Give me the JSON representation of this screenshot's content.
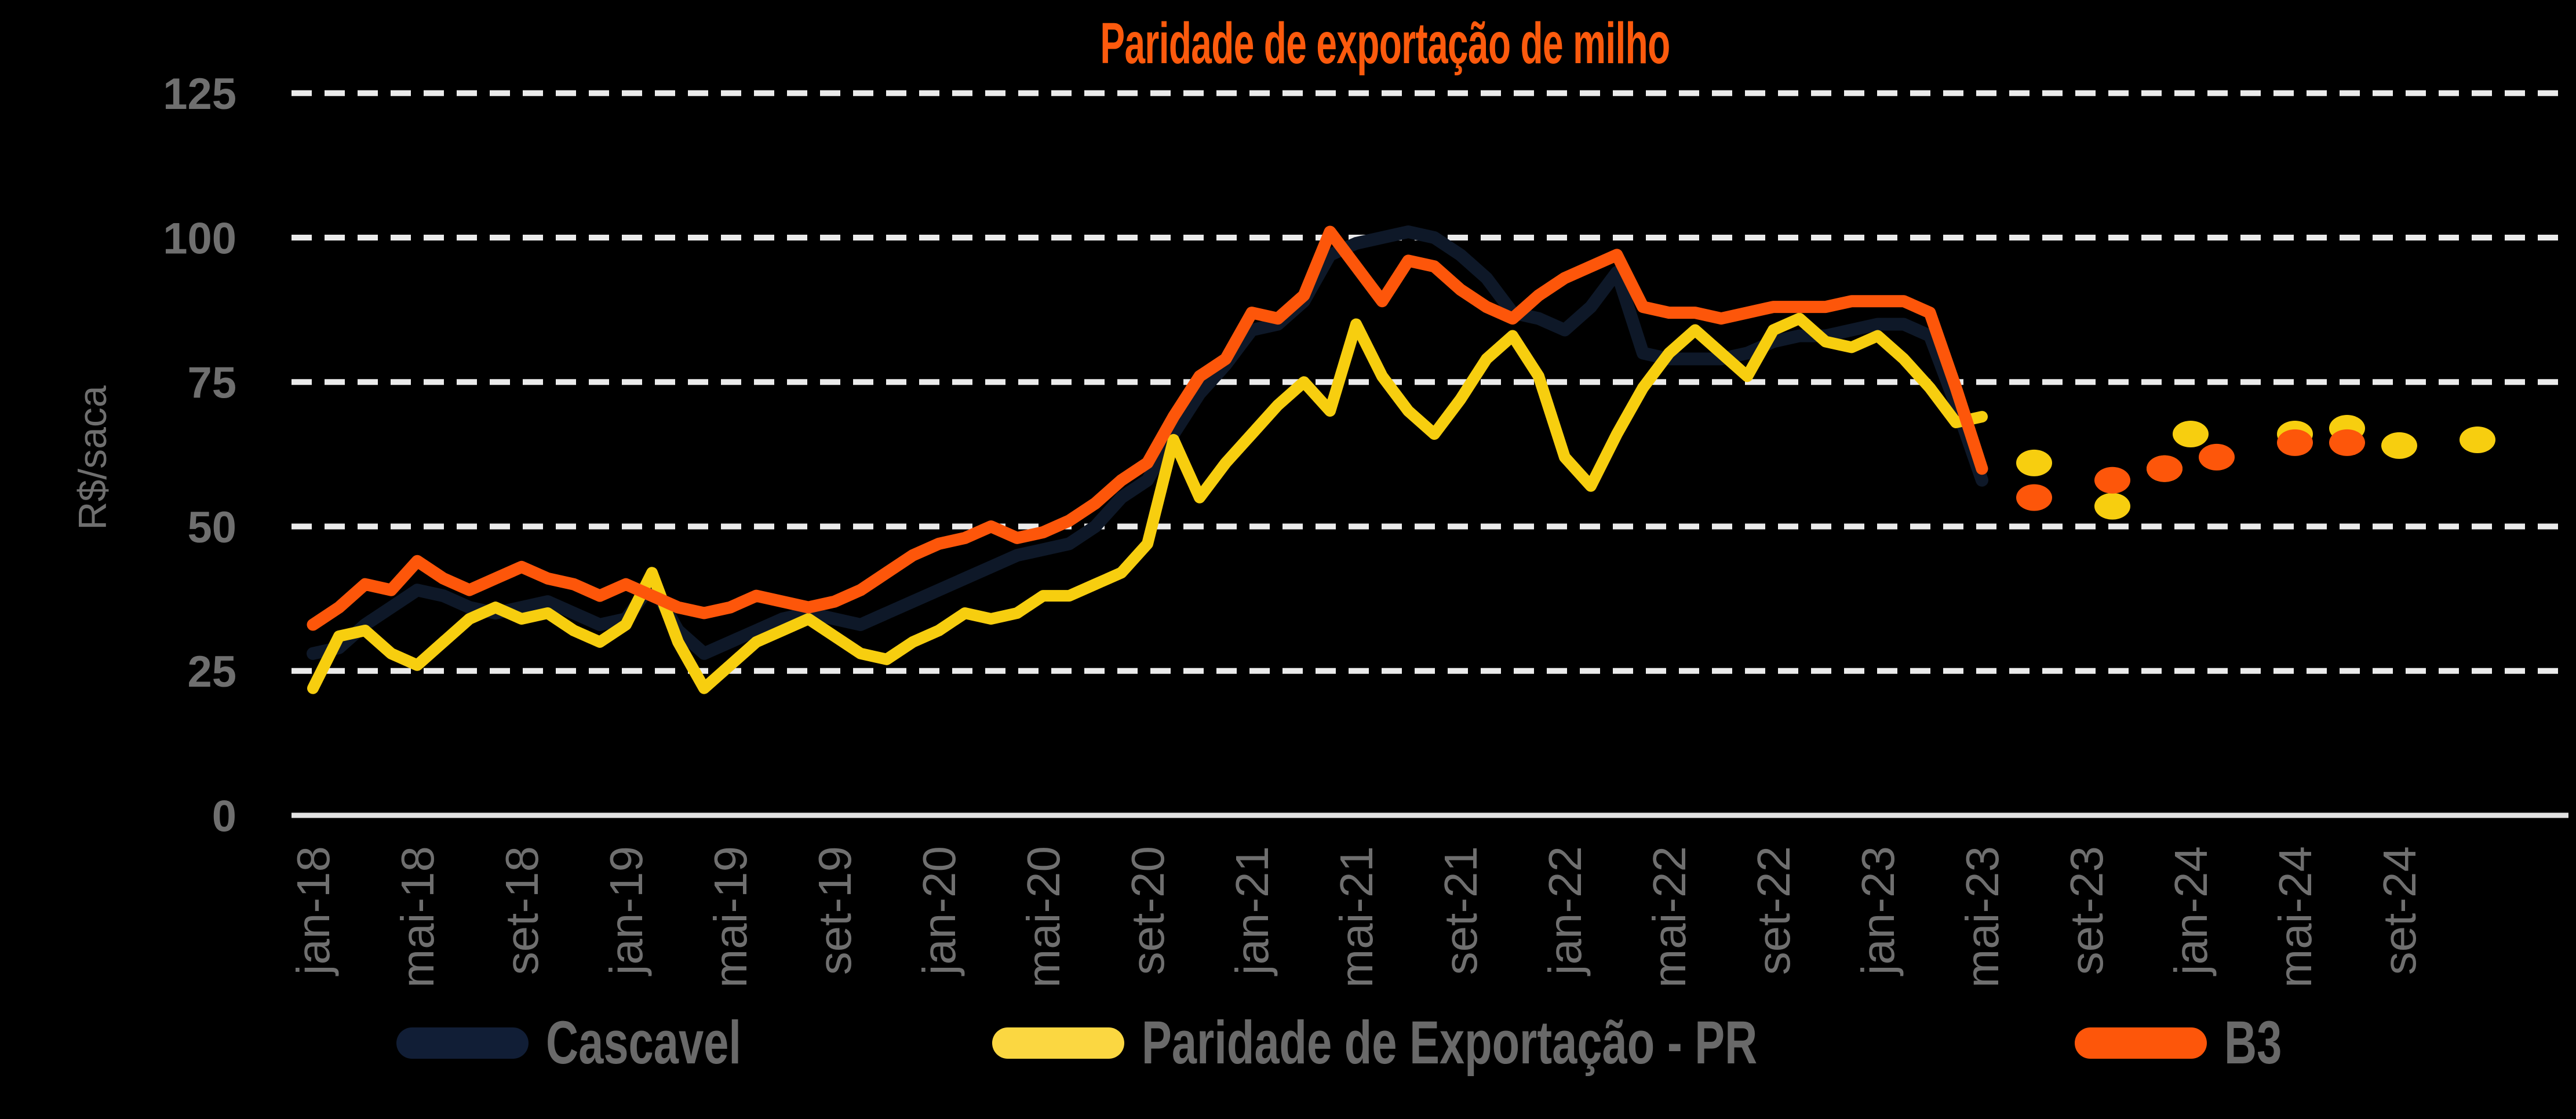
{
  "title": "Paridade de exportação de milho",
  "colors": {
    "background": "#000000",
    "title": "#FC5A0D",
    "gridline": "#EBEBEB",
    "axis_line": "#E3E3E3",
    "tick_text": "#6F6F6F",
    "legend_text": "#696969"
  },
  "y_axis": {
    "unit_label": "R$/saca",
    "ticks": [
      0,
      25,
      50,
      75,
      100,
      125
    ]
  },
  "x_axis": {
    "tick_labels": [
      "jan-18",
      "mai-18",
      "set-18",
      "jan-19",
      "mai-19",
      "set-19",
      "jan-20",
      "mai-20",
      "set-20",
      "jan-21",
      "mai-21",
      "set-21",
      "jan-22",
      "mai-22",
      "set-22",
      "jan-23",
      "mai-23",
      "set-23",
      "jan-24",
      "mai-24",
      "set-24"
    ]
  },
  "legend": [
    {
      "label": "Cascavel",
      "color": "#111E36"
    },
    {
      "label": "Paridade de Exportação - PR",
      "color": "#FBD741"
    },
    {
      "label": "B3",
      "color": "#FD560A"
    }
  ],
  "chart_data": {
    "type": "line",
    "title": "Paridade de exportação de milho",
    "ylabel": "R$/saca",
    "ylim": [
      0,
      125
    ],
    "grid": "horizontal-dashed-white",
    "legend_position": "bottom",
    "x": [
      "jan-18",
      "fev-18",
      "mar-18",
      "abr-18",
      "mai-18",
      "jun-18",
      "jul-18",
      "ago-18",
      "set-18",
      "out-18",
      "nov-18",
      "dez-18",
      "jan-19",
      "fev-19",
      "mar-19",
      "abr-19",
      "mai-19",
      "jun-19",
      "jul-19",
      "ago-19",
      "set-19",
      "out-19",
      "nov-19",
      "dez-19",
      "jan-20",
      "fev-20",
      "mar-20",
      "abr-20",
      "mai-20",
      "jun-20",
      "jul-20",
      "ago-20",
      "set-20",
      "out-20",
      "nov-20",
      "dez-20",
      "jan-21",
      "fev-21",
      "mar-21",
      "abr-21",
      "mai-21",
      "jun-21",
      "jul-21",
      "ago-21",
      "set-21",
      "out-21",
      "nov-21",
      "dez-21",
      "jan-22",
      "fev-22",
      "mar-22",
      "abr-22",
      "mai-22",
      "jun-22",
      "jul-22",
      "ago-22",
      "set-22",
      "out-22",
      "nov-22",
      "dez-22",
      "jan-23",
      "fev-23",
      "mar-23",
      "abr-23",
      "mai-23"
    ],
    "series": [
      {
        "name": "Cascavel",
        "color": "#0E1828",
        "stroke_width": 22,
        "values": [
          28,
          29,
          33,
          36,
          39,
          38,
          36,
          35,
          36,
          37,
          35,
          33,
          34,
          40,
          32,
          28,
          30,
          32,
          34,
          35,
          34,
          33,
          35,
          37,
          39,
          41,
          43,
          45,
          46,
          47,
          50,
          55,
          58,
          66,
          73,
          78,
          84,
          85,
          89,
          97,
          99,
          100,
          101,
          100,
          97,
          93,
          87,
          86,
          84,
          88,
          94,
          80,
          79,
          79,
          79,
          80,
          82,
          83,
          83,
          84,
          85,
          85,
          83,
          71,
          58
        ]
      },
      {
        "name": "Paridade de Exportação - PR",
        "color": "#F7CE0F",
        "stroke_width": 20,
        "values": [
          22,
          31,
          32,
          28,
          26,
          30,
          34,
          36,
          34,
          35,
          32,
          30,
          33,
          42,
          30,
          22,
          26,
          30,
          32,
          34,
          31,
          28,
          27,
          30,
          32,
          35,
          34,
          35,
          38,
          38,
          40,
          42,
          47,
          65,
          55,
          61,
          66,
          71,
          75,
          70,
          85,
          76,
          70,
          66,
          72,
          79,
          83,
          76,
          62,
          57,
          66,
          74,
          80,
          84,
          80,
          76,
          84,
          86,
          82,
          81,
          83,
          79,
          74,
          68,
          69
        ]
      },
      {
        "name": "B3",
        "color": "#FD560A",
        "stroke_width": 21,
        "values": [
          33,
          36,
          40,
          39,
          44,
          41,
          39,
          41,
          43,
          41,
          40,
          38,
          40,
          38,
          36,
          35,
          36,
          38,
          37,
          36,
          37,
          39,
          42,
          45,
          47,
          48,
          50,
          48,
          49,
          51,
          54,
          58,
          61,
          69,
          76,
          79,
          87,
          86,
          90,
          101,
          95,
          89,
          96,
          95,
          91,
          88,
          86,
          90,
          93,
          95,
          97,
          88,
          87,
          87,
          86,
          87,
          88,
          88,
          88,
          89,
          89,
          89,
          87,
          74,
          60
        ]
      }
    ],
    "projection_dots": [
      {
        "series": "Paridade de Exportação - PR",
        "color": "#F7CE0F",
        "points": [
          {
            "month": "jul-23",
            "m": 66,
            "value": 61
          },
          {
            "month": "out-23",
            "m": 69,
            "value": 53.5
          },
          {
            "month": "dez-23",
            "m": 71,
            "value": 60
          },
          {
            "month": "jan-24",
            "m": 72,
            "value": 66
          },
          {
            "month": "mai-24",
            "m": 76,
            "value": 66
          },
          {
            "month": "jul-24",
            "m": 78,
            "value": 67
          },
          {
            "month": "set-24",
            "m": 80,
            "value": 64
          },
          {
            "month": "dez-24",
            "m": 83,
            "value": 65
          }
        ]
      },
      {
        "series": "B3",
        "color": "#FD560A",
        "points": [
          {
            "month": "jul-23",
            "m": 66,
            "value": 55
          },
          {
            "month": "out-23",
            "m": 69,
            "value": 58
          },
          {
            "month": "dez-23",
            "m": 71,
            "value": 60
          },
          {
            "month": "fev-24",
            "m": 73,
            "value": 62
          },
          {
            "month": "mai-24",
            "m": 76,
            "value": 64.5
          },
          {
            "month": "jul-24",
            "m": 78,
            "value": 64.5
          }
        ]
      }
    ]
  }
}
